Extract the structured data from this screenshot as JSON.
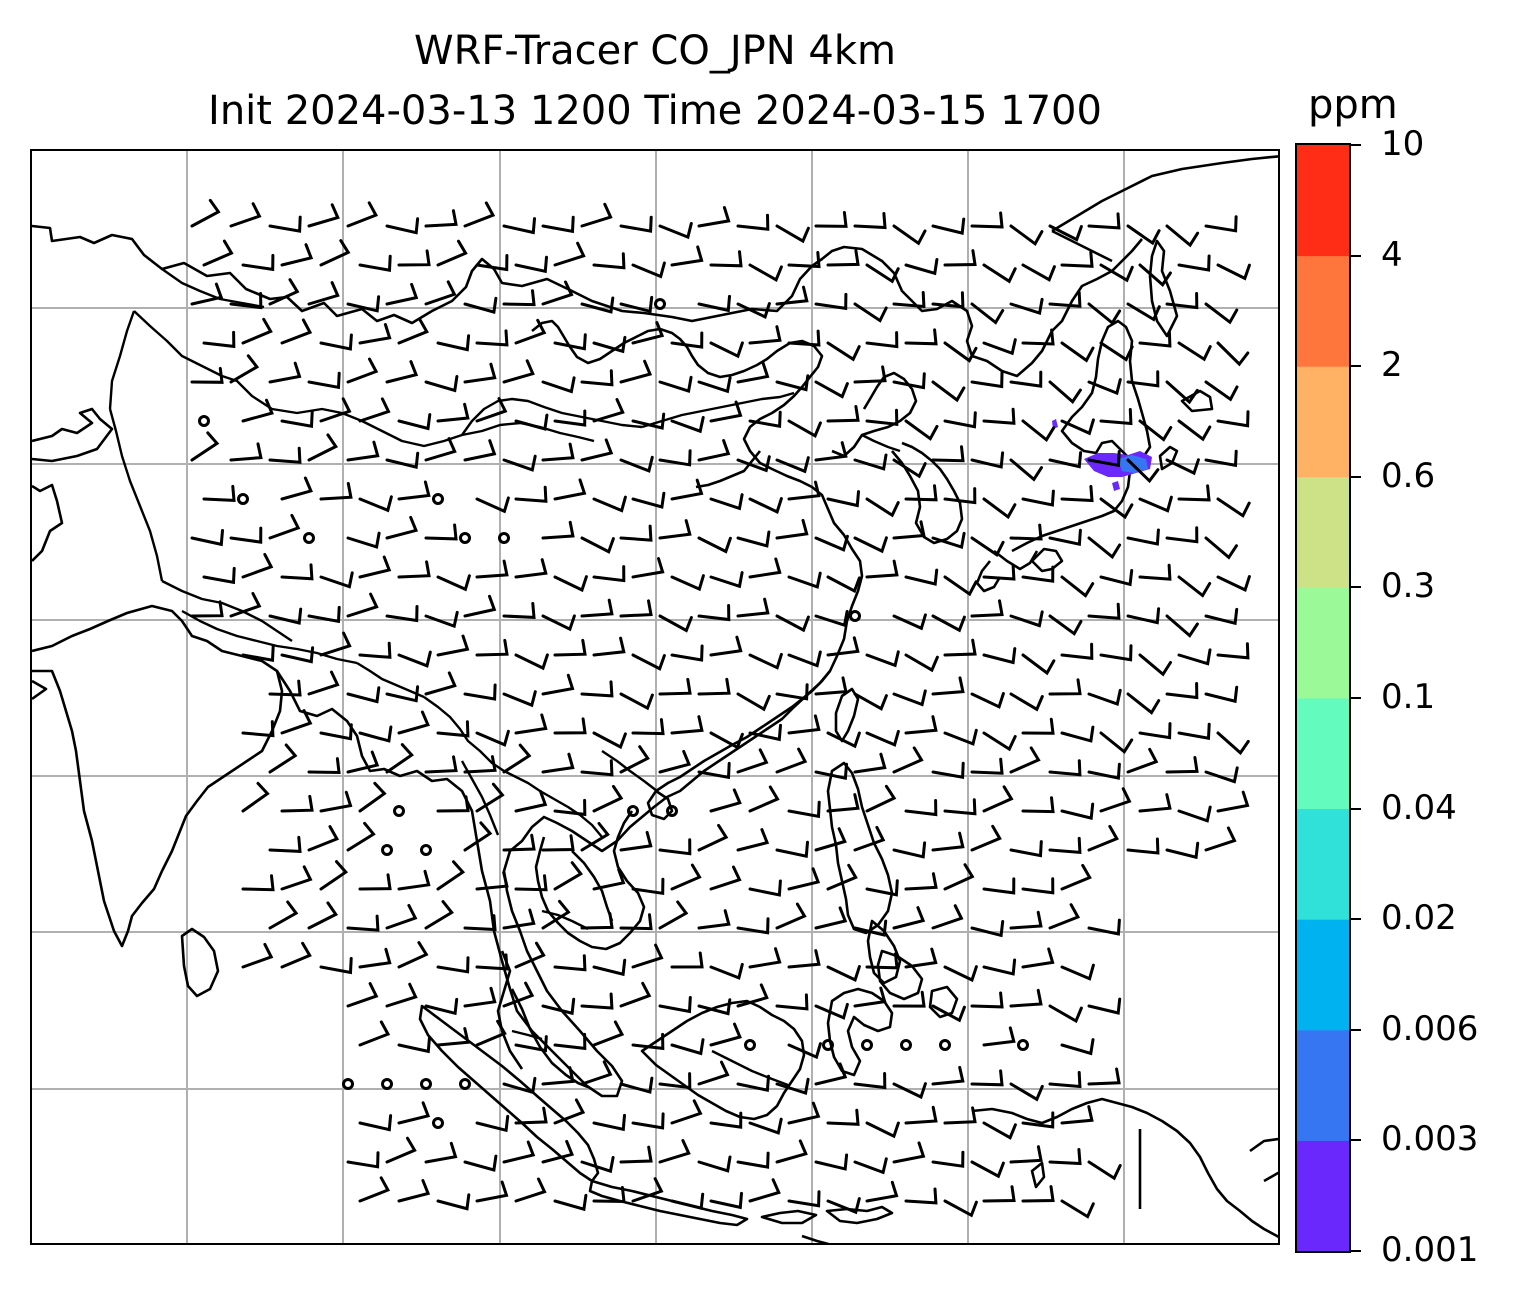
{
  "title": "WRF-Tracer CO_JPN 4km",
  "subtitle": "Init 2024-03-13 1200 Time 2024-03-15 1700",
  "colorbar": {
    "unit": "ppm",
    "levels": [
      "0.001",
      "0.003",
      "0.006",
      "0.02",
      "0.04",
      "0.1",
      "0.3",
      "0.6",
      "2",
      "4",
      "10"
    ],
    "colors": [
      "#6a28fc",
      "#3776f3",
      "#00b2ef",
      "#2fe1d8",
      "#63fbbe",
      "#9bfa97",
      "#cde286",
      "#ffb264",
      "#ff763d",
      "#ff2d16"
    ]
  },
  "map": {
    "projection": "Mercator",
    "gridlines": true,
    "features": [
      "coastlines",
      "country-borders",
      "wind-barbs",
      "CO tracer concentration"
    ],
    "tracer_plume": {
      "location": "Japan, Honshu (Kanto)",
      "max_level_ppm": "0.006",
      "colors": [
        "#6a28fc",
        "#3776f3"
      ]
    }
  }
}
